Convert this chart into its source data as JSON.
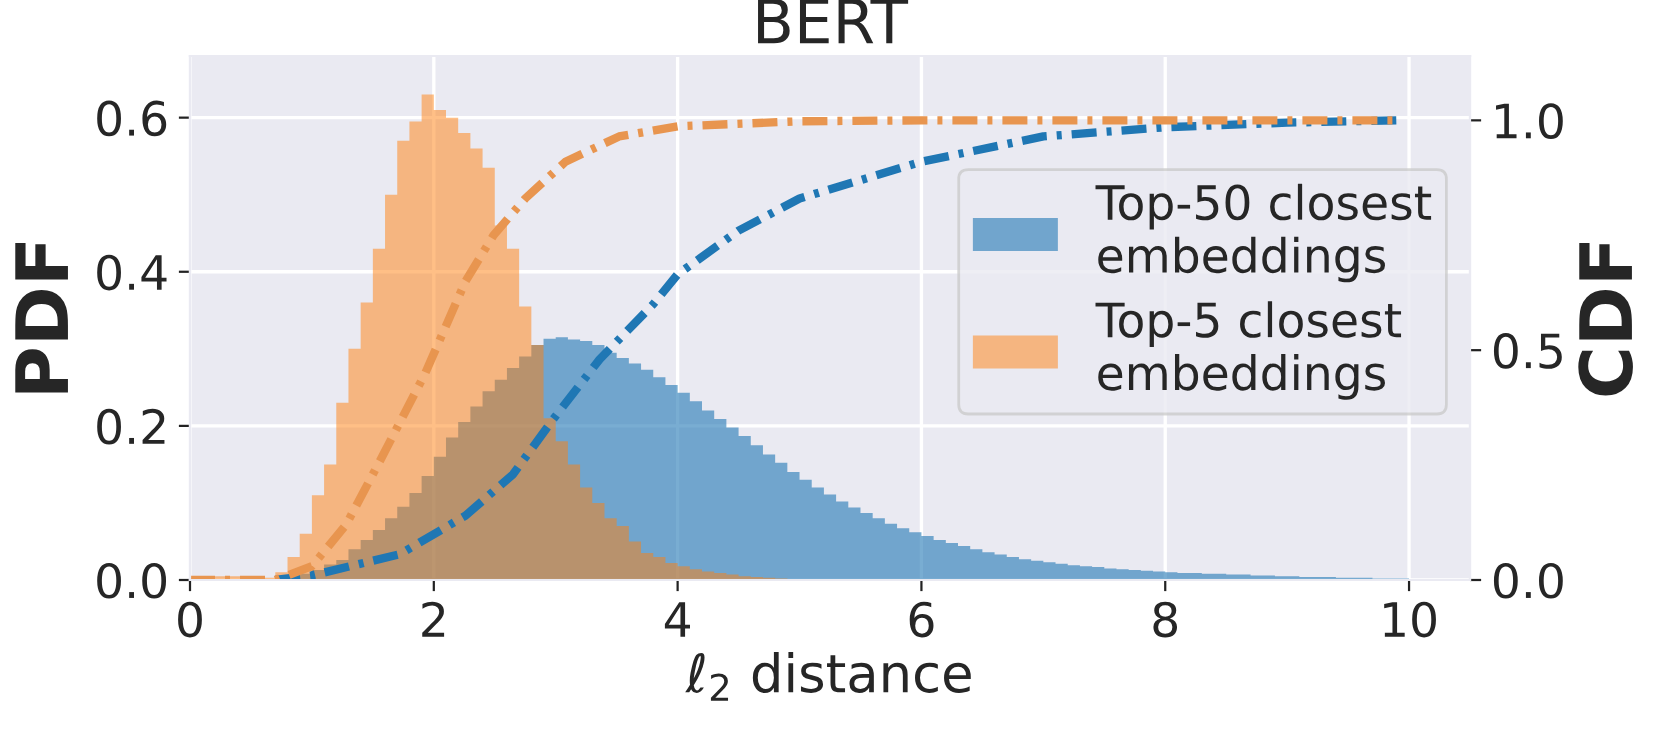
{
  "chart_data": {
    "type": "histogram",
    "title": "BERT",
    "xlabel": "ℓ$_{2}$ distance",
    "ylabel": "PDF",
    "y2label": "CDF",
    "bins": [
      0,
      0.1,
      0.2,
      0.3,
      0.4,
      0.5,
      0.6,
      0.7,
      0.8,
      0.9,
      1,
      1.1,
      1.2,
      1.3,
      1.4,
      1.5,
      1.6,
      1.7,
      1.8,
      1.9,
      2,
      2.1,
      2.2,
      2.3,
      2.4,
      2.5,
      2.6,
      2.7,
      2.8,
      2.9,
      3,
      3.1,
      3.2,
      3.3,
      3.4,
      3.5,
      3.6,
      3.7,
      3.8,
      3.9,
      4,
      4.1,
      4.2,
      4.3,
      4.4,
      4.5,
      4.6,
      4.7,
      4.8,
      4.9,
      5,
      5.1,
      5.2,
      5.3,
      5.4,
      5.5,
      5.6,
      5.7,
      5.8,
      5.9,
      6,
      6.1,
      6.2,
      6.3,
      6.4,
      6.5,
      6.6,
      6.7,
      6.8,
      6.9,
      7,
      7.1,
      7.2,
      7.3,
      7.4,
      7.5,
      7.6,
      7.7,
      7.8,
      7.9,
      8,
      8.1,
      8.2,
      8.3,
      8.4,
      8.5,
      8.6,
      8.7,
      8.8,
      8.9,
      9,
      9.1,
      9.2,
      9.3,
      9.4,
      9.5,
      9.6,
      9.7,
      9.8,
      9.9,
      10
    ],
    "series": [
      {
        "name": "Top-50 closest\nembeddings",
        "color": "#1f77b4",
        "values": [
          0,
          0,
          0,
          0,
          0,
          0,
          0,
          0.002,
          0.004,
          0.008,
          0.013,
          0.02,
          0.026,
          0.04,
          0.052,
          0.065,
          0.08,
          0.095,
          0.113,
          0.135,
          0.16,
          0.185,
          0.205,
          0.225,
          0.245,
          0.26,
          0.275,
          0.29,
          0.305,
          0.313,
          0.315,
          0.312,
          0.31,
          0.305,
          0.295,
          0.288,
          0.281,
          0.273,
          0.263,
          0.253,
          0.243,
          0.232,
          0.22,
          0.209,
          0.198,
          0.187,
          0.175,
          0.163,
          0.152,
          0.14,
          0.13,
          0.12,
          0.111,
          0.102,
          0.094,
          0.087,
          0.08,
          0.073,
          0.067,
          0.062,
          0.057,
          0.052,
          0.048,
          0.044,
          0.04,
          0.036,
          0.033,
          0.03,
          0.027,
          0.025,
          0.023,
          0.021,
          0.019,
          0.018,
          0.017,
          0.015,
          0.014,
          0.013,
          0.012,
          0.011,
          0.01,
          0.009,
          0.009,
          0.008,
          0.008,
          0.007,
          0.007,
          0.006,
          0.006,
          0.005,
          0.005,
          0.004,
          0.004,
          0.004,
          0.003,
          0.003,
          0.003,
          0.002,
          0.002,
          0.002
        ]
      },
      {
        "name": "Top-5 closest\nembeddings",
        "color": "#ff7f0e",
        "values": [
          0.005,
          0.005,
          0.005,
          0.005,
          0.005,
          0.005,
          0.003,
          0.01,
          0.03,
          0.06,
          0.11,
          0.15,
          0.23,
          0.3,
          0.36,
          0.43,
          0.5,
          0.57,
          0.595,
          0.63,
          0.61,
          0.6,
          0.58,
          0.56,
          0.535,
          0.46,
          0.43,
          0.355,
          0.305,
          0.21,
          0.18,
          0.15,
          0.12,
          0.1,
          0.08,
          0.07,
          0.05,
          0.035,
          0.03,
          0.022,
          0.018,
          0.014,
          0.011,
          0.009,
          0.007,
          0.005,
          0.004,
          0.003,
          0.002,
          0.001,
          0,
          0,
          0,
          0,
          0,
          0,
          0,
          0,
          0,
          0,
          0,
          0,
          0,
          0,
          0,
          0,
          0,
          0,
          0,
          0,
          0,
          0,
          0,
          0,
          0,
          0,
          0,
          0,
          0,
          0,
          0,
          0,
          0,
          0,
          0,
          0,
          0,
          0,
          0,
          0,
          0,
          0,
          0,
          0,
          0,
          0,
          0,
          0,
          0,
          0
        ]
      },
      {
        "type": "line",
        "axis": "y2",
        "color": "#1f77b4",
        "line_style": "dashdot",
        "x": [
          0.7,
          1.0,
          1.72,
          2.26,
          2.65,
          2.98,
          3.36,
          3.8,
          4.0,
          4.5,
          5.0,
          5.5,
          6.0,
          7.0,
          8.0,
          9.0,
          9.9
        ],
        "values": [
          0,
          0.01,
          0.056,
          0.14,
          0.23,
          0.35,
          0.48,
          0.6,
          0.665,
          0.76,
          0.83,
          0.87,
          0.91,
          0.965,
          0.985,
          0.995,
          1.0
        ]
      },
      {
        "type": "line",
        "axis": "y2",
        "color": "#e8954f",
        "line_style": "dashdot",
        "x": [
          0,
          0.7,
          1.0,
          1.28,
          1.56,
          1.93,
          2.26,
          2.49,
          2.75,
          3.08,
          3.52,
          4.0,
          5.0,
          6.0,
          8.0,
          9.9
        ],
        "values": [
          0,
          0,
          0.03,
          0.12,
          0.26,
          0.45,
          0.65,
          0.75,
          0.83,
          0.91,
          0.965,
          0.987,
          0.998,
          1.0,
          1.0,
          1.0
        ]
      }
    ],
    "xlim": [
      0,
      10.5
    ],
    "xticks": [
      0,
      2,
      4,
      6,
      8,
      10
    ],
    "ylim": [
      0,
      0.68
    ],
    "yticks": [
      {
        "value": 0,
        "label": "0.0"
      },
      0.2,
      0.4,
      0.6
    ],
    "y2lim": [
      0,
      1.14
    ],
    "y2ticks": [
      {
        "value": 0,
        "label": "0.0"
      },
      0.5,
      {
        "value": 1,
        "label": "1.0"
      }
    ],
    "grid": true,
    "legend": "right"
  }
}
